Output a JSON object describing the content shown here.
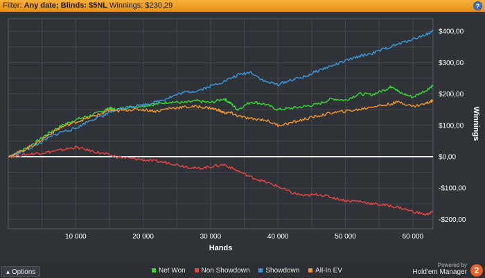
{
  "filter": {
    "prefix": "Filter:",
    "date_label": "Any date;",
    "blinds_label": "Blinds: $5NL",
    "winnings_label": "Winnings: $230,29"
  },
  "toolbar": {
    "help_label": "?"
  },
  "options_label": "Options",
  "brand": {
    "powered_by": "Powered by",
    "name": "Hold'em Manager",
    "badge": "2"
  },
  "chart_data": {
    "type": "line",
    "xlabel": "Hands",
    "ylabel": "Winnings",
    "xlim": [
      0,
      63000
    ],
    "ylim": [
      -230,
      440
    ],
    "x_ticks": [
      10000,
      20000,
      30000,
      40000,
      50000,
      60000
    ],
    "x_tick_labels": [
      "10 000",
      "20 000",
      "30 000",
      "40 000",
      "50 000",
      "60 000"
    ],
    "y_ticks": [
      400,
      300,
      200,
      100,
      0,
      -100,
      -200
    ],
    "y_tick_labels": [
      "$400,00",
      "$300,00",
      "$200,00",
      "$100,00",
      "$0,00",
      "-$100,00",
      "-$200,00"
    ],
    "grid": true,
    "legend_position": "bottom",
    "series": [
      {
        "name": "Net Won",
        "color": "#33dd33",
        "x": [
          0,
          2000,
          4000,
          6000,
          8000,
          10000,
          12000,
          14000,
          15000,
          16000,
          18000,
          20000,
          22000,
          24000,
          26000,
          28000,
          30000,
          32000,
          33000,
          34000,
          36000,
          38000,
          40000,
          42000,
          44000,
          46000,
          48000,
          50000,
          52000,
          54000,
          56000,
          57000,
          58000,
          60000,
          62000,
          63000
        ],
        "values": [
          0,
          20,
          45,
          75,
          100,
          118,
          130,
          145,
          155,
          150,
          158,
          162,
          168,
          175,
          172,
          178,
          172,
          185,
          170,
          150,
          175,
          168,
          150,
          155,
          160,
          168,
          185,
          180,
          200,
          198,
          215,
          225,
          205,
          190,
          212,
          228
        ]
      },
      {
        "name": "Non Showdown",
        "color": "#e84545",
        "x": [
          0,
          2000,
          4000,
          6000,
          8000,
          10000,
          12000,
          14000,
          16000,
          18000,
          20000,
          22000,
          24000,
          26000,
          28000,
          30000,
          32000,
          34000,
          36000,
          38000,
          40000,
          42000,
          44000,
          46000,
          48000,
          50000,
          52000,
          54000,
          56000,
          58000,
          60000,
          62000,
          63000
        ],
        "values": [
          0,
          5,
          10,
          15,
          22,
          30,
          20,
          10,
          0,
          -5,
          -10,
          -15,
          -20,
          -30,
          -38,
          -32,
          -25,
          -45,
          -65,
          -80,
          -95,
          -115,
          -125,
          -120,
          -130,
          -140,
          -142,
          -150,
          -155,
          -162,
          -175,
          -185,
          -175
        ]
      },
      {
        "name": "Showdown",
        "color": "#3a9ae0",
        "x": [
          0,
          2000,
          4000,
          6000,
          8000,
          10000,
          12000,
          14000,
          15000,
          16000,
          18000,
          20000,
          22000,
          24000,
          26000,
          28000,
          30000,
          32000,
          34000,
          36000,
          38000,
          40000,
          42000,
          44000,
          46000,
          48000,
          50000,
          52000,
          54000,
          56000,
          58000,
          60000,
          62000,
          63000
        ],
        "values": [
          0,
          15,
          35,
          60,
          80,
          90,
          115,
          130,
          140,
          150,
          160,
          165,
          175,
          190,
          205,
          210,
          225,
          240,
          260,
          270,
          240,
          230,
          245,
          255,
          275,
          290,
          305,
          320,
          330,
          345,
          360,
          375,
          390,
          400
        ]
      },
      {
        "name": "All-In EV",
        "color": "#f2972e",
        "x": [
          0,
          2000,
          4000,
          6000,
          8000,
          10000,
          12000,
          14000,
          15000,
          16000,
          18000,
          20000,
          22000,
          24000,
          26000,
          28000,
          30000,
          31000,
          32000,
          33000,
          34000,
          36000,
          38000,
          40000,
          42000,
          44000,
          46000,
          48000,
          50000,
          52000,
          54000,
          56000,
          58000,
          60000,
          62000,
          63000
        ],
        "values": [
          0,
          18,
          40,
          70,
          95,
          110,
          125,
          138,
          150,
          145,
          150,
          150,
          145,
          155,
          158,
          160,
          155,
          150,
          140,
          140,
          130,
          120,
          118,
          100,
          108,
          120,
          130,
          140,
          145,
          150,
          160,
          165,
          175,
          160,
          170,
          180
        ]
      }
    ]
  }
}
